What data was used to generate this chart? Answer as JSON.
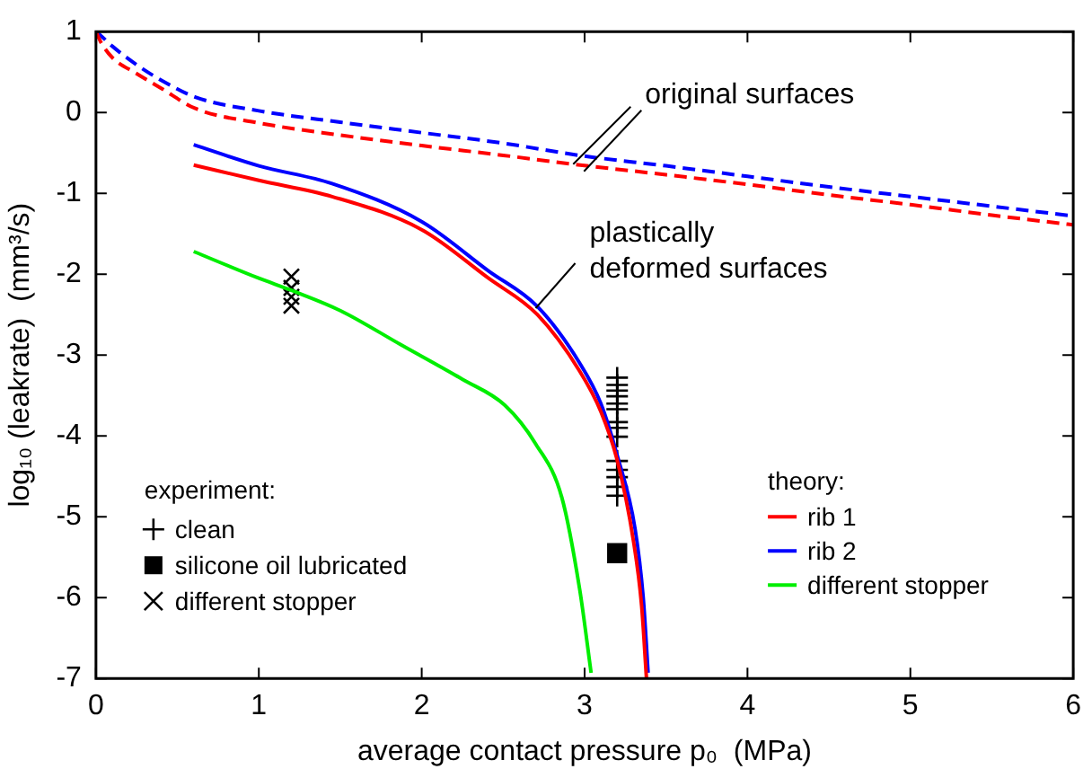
{
  "chart_data": {
    "type": "line",
    "xlabel": "average contact pressure p₀  (MPa)",
    "ylabel": "log₁₀ (leakrate)  (mm³/s)",
    "xlim": [
      0,
      6
    ],
    "xticks": [
      0,
      1,
      2,
      3,
      4,
      5,
      6
    ],
    "ylim": [
      -7,
      1
    ],
    "yticks": [
      -7,
      -6,
      -5,
      -4,
      -3,
      -2,
      -1,
      0,
      1
    ],
    "grid": false,
    "legend": "right",
    "legend_title": "theory:",
    "series": [
      {
        "color": "#ff0000",
        "line_style": "dashed",
        "marker": "none",
        "x": [
          0,
          0.03,
          0.1,
          0.25,
          0.4,
          0.61,
          1,
          1.5,
          2,
          2.5,
          2.93,
          3.5,
          4,
          4.5,
          5,
          5.5,
          6
        ],
        "values": [
          1,
          0.87,
          0.68,
          0.48,
          0.3,
          0.05,
          -0.13,
          -0.28,
          -0.41,
          -0.53,
          -0.64,
          -0.77,
          -0.89,
          -1.02,
          -1.14,
          -1.27,
          -1.39
        ]
      },
      {
        "color": "#0000ff",
        "line_style": "dashed",
        "marker": "none",
        "x": [
          0,
          0.03,
          0.1,
          0.25,
          0.4,
          0.61,
          1,
          1.5,
          2,
          2.5,
          3,
          3.5,
          4,
          4.5,
          5,
          5.5,
          6
        ],
        "values": [
          1,
          0.95,
          0.82,
          0.59,
          0.4,
          0.19,
          0.02,
          -0.12,
          -0.25,
          -0.38,
          -0.54,
          -0.66,
          -0.79,
          -0.92,
          -1.04,
          -1.16,
          -1.28
        ]
      },
      {
        "name": "rib 1",
        "color": "#ff0000",
        "line_style": "solid",
        "marker": "none",
        "x": [
          0.6,
          1,
          1.45,
          2,
          2.41,
          2.71,
          2.97,
          3.1,
          3.2,
          3.3,
          3.35,
          3.38
        ],
        "values": [
          -0.65,
          -0.84,
          -1.04,
          -1.45,
          -2.05,
          -2.5,
          -3.2,
          -3.7,
          -4.3,
          -5.3,
          -6.1,
          -7
        ]
      },
      {
        "name": "rib 2",
        "color": "#0000ff",
        "line_style": "solid",
        "marker": "none",
        "x": [
          0.6,
          1,
          1.45,
          2,
          2.41,
          2.71,
          2.97,
          3.1,
          3.2,
          3.31,
          3.36,
          3.39
        ],
        "values": [
          -0.4,
          -0.66,
          -0.88,
          -1.35,
          -1.96,
          -2.4,
          -3.1,
          -3.6,
          -4.24,
          -5.15,
          -6,
          -6.93
        ]
      },
      {
        "name": "different stopper",
        "color": "#00ee00",
        "line_style": "solid",
        "marker": "none",
        "x": [
          0.6,
          1,
          1.2,
          1.5,
          1.87,
          2.25,
          2.51,
          2.7,
          2.86,
          2.97,
          3.04
        ],
        "values": [
          -1.72,
          -2.05,
          -2.2,
          -2.45,
          -2.87,
          -3.3,
          -3.62,
          -4.1,
          -4.76,
          -5.9,
          -6.93
        ]
      },
      {
        "type": "scatter",
        "name": "clean",
        "color": "#000000",
        "marker": "plus",
        "x": [
          3.2,
          3.2,
          3.2,
          3.2,
          3.2,
          3.2,
          3.2,
          3.2,
          3.2,
          3.2,
          3.2,
          3.2,
          3.2,
          3.2
        ],
        "values": [
          -3.28,
          -3.37,
          -3.44,
          -3.51,
          -3.6,
          -3.67,
          -3.83,
          -3.9,
          -4.01,
          -4.31,
          -4.42,
          -4.51,
          -4.63,
          -4.74
        ]
      },
      {
        "type": "scatter",
        "name": "silicone oil lubricated",
        "color": "#000000",
        "marker": "square",
        "x": [
          3.2
        ],
        "values": [
          -5.45
        ]
      },
      {
        "type": "scatter",
        "name": "different stopper",
        "color": "#000000",
        "marker": "cross",
        "x": [
          1.2,
          1.2,
          1.2,
          1.2
        ],
        "values": [
          -2.03,
          -2.17,
          -2.28,
          -2.39
        ]
      }
    ],
    "annotations": [
      {
        "text": "original surfaces",
        "x": 2.93,
        "y": -0.64
      },
      {
        "text": "plastically deformed surfaces",
        "x": 2.7,
        "y": -2.42
      },
      "experiment:"
    ]
  }
}
